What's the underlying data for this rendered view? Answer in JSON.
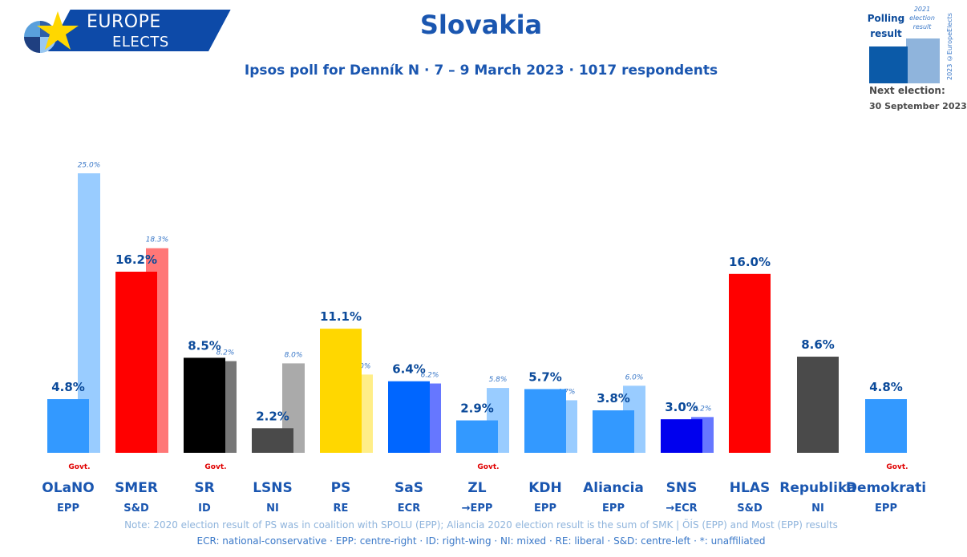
{
  "logo": {
    "line1": "EUROPE",
    "line2": "ELECTS"
  },
  "title": "Slovakia",
  "subtitle": "Ipsos poll for Denník N · 7 – 9 March 2023 · 1017 respondents",
  "legend": {
    "poll_label": "Polling result",
    "election_label": "2021 election result",
    "copyright": "2023 ©EuropeElects",
    "next_label": "Next election:",
    "next_date": "30 September 2023"
  },
  "note": "Note: 2020 election result of PS was in coalition with SPOLU (EPP); Aliancia 2020 election result is the sum of SMK | ÖÍS (EPP) and Most (EPP) results",
  "groups_legend": "ECR: national-conservative · EPP: centre-right · ID: right-wing · NI: mixed · RE: liberal · S&D: centre-left · *: unaffiliated",
  "chart_data": {
    "type": "bar",
    "categories": [
      "OLaNO",
      "SMER",
      "SR",
      "LSNS",
      "PS",
      "SaS",
      "ZL",
      "KDH",
      "Aliancia",
      "SNS",
      "HLAS",
      "Republika",
      "Demokrati"
    ],
    "groups": [
      "EPP",
      "S&D",
      "ID",
      "NI",
      "RE",
      "ECR",
      "→EPP",
      "EPP",
      "EPP",
      "→ECR",
      "S&D",
      "NI",
      "EPP"
    ],
    "govt": [
      "Govt.",
      "",
      "Govt.",
      "",
      "",
      "",
      "Govt.",
      "",
      "",
      "",
      "",
      "",
      "Govt."
    ],
    "series": [
      {
        "name": "Polling result",
        "values": [
          4.8,
          16.2,
          8.5,
          2.2,
          11.1,
          6.4,
          2.9,
          5.7,
          3.8,
          3.0,
          16.0,
          8.6,
          4.8
        ],
        "labels": [
          "4.8%",
          "16.2%",
          "8.5%",
          "2.2%",
          "11.1%",
          "6.4%",
          "2.9%",
          "5.7%",
          "3.8%",
          "3.0%",
          "16.0%",
          "8.6%",
          "4.8%"
        ]
      },
      {
        "name": "2021 election result",
        "values": [
          25.0,
          18.3,
          8.2,
          8.0,
          7.0,
          6.2,
          5.8,
          4.7,
          6.0,
          3.2,
          null,
          null,
          null
        ],
        "labels": [
          "25.0%",
          "18.3%",
          "8.2%",
          "8.0%",
          "7.0%",
          "6.2%",
          "5.8%",
          "4.7%",
          "6.0%",
          "3.2%",
          "",
          "",
          ""
        ]
      }
    ],
    "colors": [
      "#3399ff",
      "#ff0000",
      "#000000",
      "#4a4a4a",
      "#ffd700",
      "#0066ff",
      "#3399ff",
      "#3399ff",
      "#3399ff",
      "#0000ee",
      "#ff0000",
      "#4a4a4a",
      "#3399ff"
    ],
    "election_colors": [
      "#99ccff",
      "#ff7777",
      "#777777",
      "#aaaaaa",
      "#ffee88",
      "#6677ff",
      "#99ccff",
      "#99ccff",
      "#99ccff",
      "#6677ff",
      "",
      "",
      ""
    ],
    "ylim": [
      0,
      26
    ]
  }
}
